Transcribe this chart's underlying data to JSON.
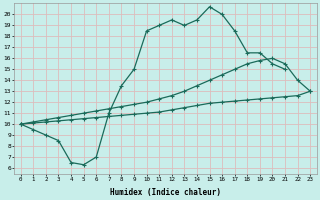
{
  "xlabel": "Humidex (Indice chaleur)",
  "background_color": "#c8eeea",
  "grid_color": "#ddbcbc",
  "line_color": "#1a6b5a",
  "x_ticks": [
    0,
    1,
    2,
    3,
    4,
    5,
    6,
    7,
    8,
    9,
    10,
    11,
    12,
    13,
    14,
    15,
    16,
    17,
    18,
    19,
    20,
    21,
    22,
    23
  ],
  "y_ticks": [
    6,
    7,
    8,
    9,
    10,
    11,
    12,
    13,
    14,
    15,
    16,
    17,
    18,
    19,
    20
  ],
  "ylim": [
    5.5,
    21.0
  ],
  "xlim": [
    -0.5,
    23.5
  ],
  "line1_y": [
    10,
    9.5,
    9,
    8.5,
    6.5,
    6.3,
    7.0,
    11.0,
    13.5,
    15.0,
    18.5,
    19.0,
    19.5,
    19.0,
    19.5,
    20.7,
    20.0,
    18.5,
    16.5,
    16.5,
    15.5,
    15.0,
    null,
    null
  ],
  "line2_y": [
    10,
    10.2,
    10.4,
    10.6,
    10.8,
    11.0,
    11.2,
    11.4,
    11.6,
    11.8,
    12.0,
    12.3,
    12.6,
    13.0,
    13.5,
    14.0,
    14.5,
    15.0,
    15.5,
    15.8,
    16.0,
    15.5,
    14.0,
    13.0
  ],
  "line3_y": [
    10,
    10.1,
    10.2,
    10.3,
    10.4,
    10.5,
    10.6,
    10.7,
    10.8,
    10.9,
    11.0,
    11.1,
    11.3,
    11.5,
    11.7,
    11.9,
    12.0,
    12.1,
    12.2,
    12.3,
    12.4,
    12.5,
    12.6,
    13.0
  ]
}
